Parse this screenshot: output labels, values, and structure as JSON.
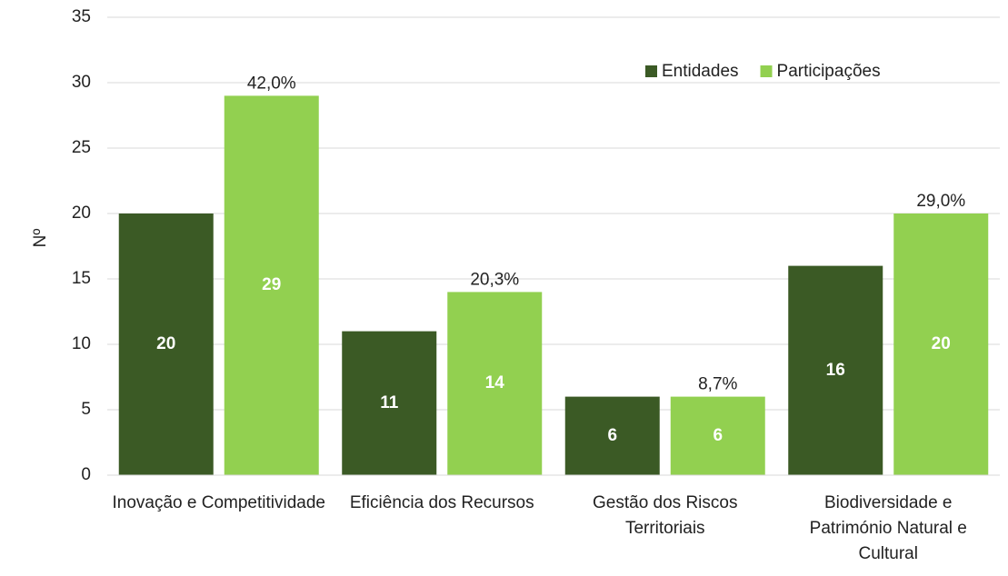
{
  "chart_data": {
    "type": "bar",
    "y_label": "Nº",
    "categories": [
      "Inovação e Competitividade",
      "Eficiência dos Recursos",
      "Gestão dos Riscos Territoriais",
      "Biodiversidade e Património Natural e Cultural"
    ],
    "series": [
      {
        "name": "Entidades",
        "color": "#3b5a25",
        "values": [
          20,
          11,
          6,
          16
        ]
      },
      {
        "name": "Participações",
        "color": "#92d050",
        "values": [
          29,
          14,
          6,
          20
        ],
        "annotations": [
          "42,0%",
          "20,3%",
          "8,7%",
          "29,0%"
        ]
      }
    ],
    "ylim": [
      0,
      35
    ],
    "yticks": [
      0,
      5,
      10,
      15,
      20,
      25,
      30,
      35
    ],
    "grid": true,
    "legend": "top-right"
  }
}
